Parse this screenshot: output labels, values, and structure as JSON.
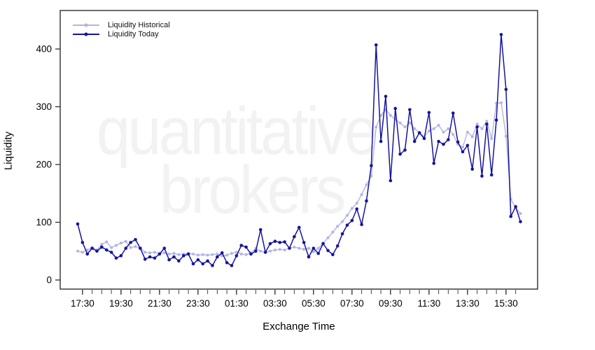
{
  "watermark": {
    "line1": "quantitative",
    "line2": "brokers",
    "color": "#f2f2f2"
  },
  "chart_data": {
    "type": "line",
    "title": "",
    "xlabel": "Exchange Time",
    "ylabel": "Liquidity",
    "ylim": [
      0,
      460
    ],
    "yticks": [
      0,
      100,
      200,
      300,
      400
    ],
    "xtick_labels": [
      "17:30",
      "19:30",
      "21:30",
      "23:30",
      "01:30",
      "03:30",
      "05:30",
      "07:30",
      "09:30",
      "11:30",
      "13:30",
      "15:30"
    ],
    "grid": false,
    "legend_position": "top-left",
    "x_times": [
      "17:15",
      "17:30",
      "17:45",
      "18:00",
      "18:15",
      "18:30",
      "18:45",
      "19:00",
      "19:15",
      "19:30",
      "19:45",
      "20:00",
      "20:15",
      "20:30",
      "20:45",
      "21:00",
      "21:15",
      "21:30",
      "21:45",
      "22:00",
      "22:15",
      "22:30",
      "22:45",
      "23:00",
      "23:15",
      "23:30",
      "23:45",
      "00:00",
      "00:15",
      "00:30",
      "00:45",
      "01:00",
      "01:15",
      "01:30",
      "01:45",
      "02:00",
      "02:15",
      "02:30",
      "02:45",
      "03:00",
      "03:15",
      "03:30",
      "03:45",
      "04:00",
      "04:15",
      "04:30",
      "04:45",
      "05:00",
      "05:15",
      "05:30",
      "05:45",
      "06:00",
      "06:15",
      "06:30",
      "06:45",
      "07:00",
      "07:15",
      "07:30",
      "07:45",
      "08:00",
      "08:15",
      "08:30",
      "08:45",
      "09:00",
      "09:15",
      "09:30",
      "09:45",
      "10:00",
      "10:15",
      "10:30",
      "10:45",
      "11:00",
      "11:15",
      "11:30",
      "11:45",
      "12:00",
      "12:15",
      "12:30",
      "12:45",
      "13:00",
      "13:15",
      "13:30",
      "13:45",
      "14:00",
      "14:15",
      "14:30",
      "14:45",
      "15:00",
      "15:15",
      "15:30",
      "15:45",
      "16:00",
      "16:15"
    ],
    "series": [
      {
        "name": "Liquidity Historical",
        "color": "#b3b3e8",
        "marker": "circle",
        "values": [
          50,
          48,
          52,
          56,
          52,
          62,
          66,
          56,
          60,
          64,
          67,
          56,
          58,
          55,
          48,
          47,
          48,
          46,
          47,
          45,
          46,
          44,
          45,
          46,
          45,
          43,
          44,
          43,
          44,
          45,
          42,
          43,
          46,
          48,
          45,
          44,
          47,
          55,
          50,
          48,
          50,
          52,
          53,
          52,
          55,
          57,
          55,
          53,
          55,
          49,
          55,
          64,
          73,
          83,
          93,
          101,
          112,
          124,
          133,
          148,
          165,
          180,
          265,
          285,
          295,
          285,
          278,
          272,
          265,
          272,
          262,
          255,
          248,
          258,
          262,
          268,
          256,
          262,
          252,
          235,
          230,
          256,
          248,
          270,
          262,
          275,
          245,
          306,
          307,
          249,
          140,
          125,
          115
        ]
      },
      {
        "name": "Liquidity Today",
        "color": "#15159b",
        "marker": "circle",
        "values": [
          97,
          65,
          45,
          55,
          50,
          57,
          52,
          48,
          38,
          42,
          55,
          65,
          70,
          55,
          36,
          40,
          38,
          45,
          55,
          35,
          40,
          33,
          42,
          45,
          28,
          35,
          28,
          33,
          25,
          40,
          47,
          30,
          25,
          42,
          60,
          57,
          45,
          50,
          87,
          48,
          63,
          67,
          65,
          66,
          55,
          75,
          91,
          65,
          40,
          55,
          46,
          63,
          51,
          44,
          59,
          80,
          95,
          103,
          123,
          96,
          137,
          198,
          407,
          240,
          318,
          172,
          297,
          218,
          225,
          295,
          240,
          255,
          245,
          290,
          202,
          240,
          235,
          243,
          289,
          239,
          222,
          233,
          192,
          265,
          180,
          270,
          182,
          277,
          425,
          330,
          110,
          127,
          101
        ]
      }
    ]
  }
}
